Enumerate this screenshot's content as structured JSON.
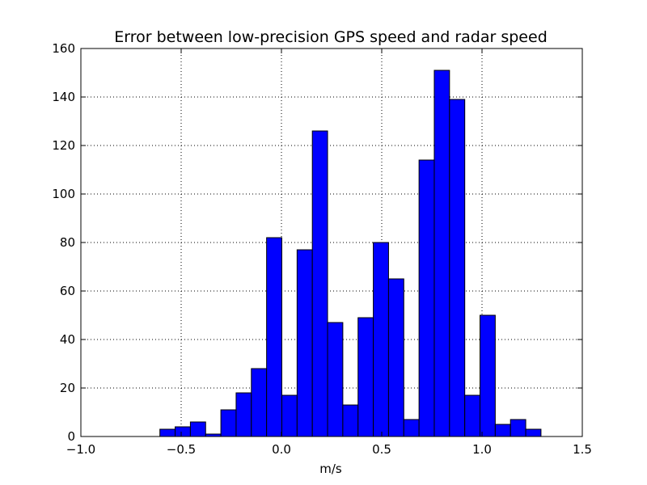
{
  "chart_data": {
    "type": "bar",
    "title": "Error between low-precision GPS speed and radar speed",
    "xlabel": "m/s",
    "ylabel": "",
    "xlim": [
      -1.0,
      1.5
    ],
    "ylim": [
      0,
      160
    ],
    "xticks": [
      -1.0,
      -0.5,
      0.0,
      0.5,
      1.0,
      1.5
    ],
    "xtick_labels": [
      "−1.0",
      "−0.5",
      "0.0",
      "0.5",
      "1.0",
      "1.5"
    ],
    "yticks": [
      0,
      20,
      40,
      60,
      80,
      100,
      120,
      140,
      160
    ],
    "ytick_labels": [
      "0",
      "20",
      "40",
      "60",
      "80",
      "100",
      "120",
      "140",
      "160"
    ],
    "grid": true,
    "bar_color": "#0000ff",
    "bins": [
      {
        "x0": -0.606,
        "x1": -0.53,
        "value": 3
      },
      {
        "x0": -0.53,
        "x1": -0.454,
        "value": 4
      },
      {
        "x0": -0.454,
        "x1": -0.378,
        "value": 6
      },
      {
        "x0": -0.378,
        "x1": -0.302,
        "value": 1
      },
      {
        "x0": -0.302,
        "x1": -0.226,
        "value": 11
      },
      {
        "x0": -0.226,
        "x1": -0.15,
        "value": 18
      },
      {
        "x0": -0.15,
        "x1": -0.074,
        "value": 28
      },
      {
        "x0": -0.074,
        "x1": 0.002,
        "value": 82
      },
      {
        "x0": 0.002,
        "x1": 0.078,
        "value": 17
      },
      {
        "x0": 0.078,
        "x1": 0.154,
        "value": 77
      },
      {
        "x0": 0.154,
        "x1": 0.23,
        "value": 126
      },
      {
        "x0": 0.23,
        "x1": 0.306,
        "value": 47
      },
      {
        "x0": 0.306,
        "x1": 0.382,
        "value": 13
      },
      {
        "x0": 0.382,
        "x1": 0.458,
        "value": 49
      },
      {
        "x0": 0.458,
        "x1": 0.534,
        "value": 80
      },
      {
        "x0": 0.534,
        "x1": 0.61,
        "value": 65
      },
      {
        "x0": 0.61,
        "x1": 0.686,
        "value": 7
      },
      {
        "x0": 0.686,
        "x1": 0.762,
        "value": 114
      },
      {
        "x0": 0.762,
        "x1": 0.838,
        "value": 151
      },
      {
        "x0": 0.838,
        "x1": 0.914,
        "value": 139
      },
      {
        "x0": 0.914,
        "x1": 0.99,
        "value": 17
      },
      {
        "x0": 0.99,
        "x1": 1.066,
        "value": 50
      },
      {
        "x0": 1.066,
        "x1": 1.142,
        "value": 5
      },
      {
        "x0": 1.142,
        "x1": 1.218,
        "value": 7
      },
      {
        "x0": 1.218,
        "x1": 1.294,
        "value": 3
      }
    ]
  }
}
